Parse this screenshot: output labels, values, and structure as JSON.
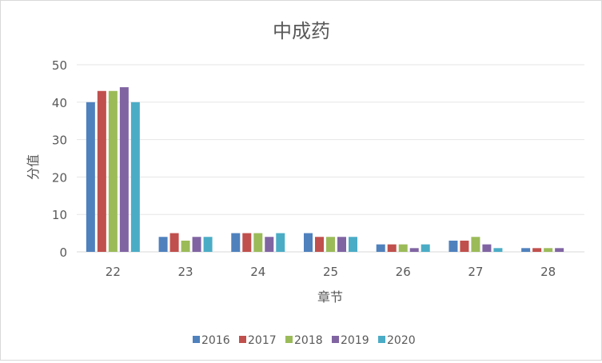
{
  "chart_data": {
    "type": "bar",
    "title": "中成药",
    "xlabel": "章节",
    "ylabel": "分值",
    "ylim": [
      0,
      50
    ],
    "yticks": [
      0,
      10,
      20,
      30,
      40,
      50
    ],
    "grid": true,
    "legend": "bottom",
    "categories": [
      "22",
      "23",
      "24",
      "25",
      "26",
      "27",
      "28"
    ],
    "series": [
      {
        "name": "2016",
        "color": "#4f81bd",
        "values": [
          40,
          4,
          5,
          5,
          2,
          3,
          1
        ]
      },
      {
        "name": "2017",
        "color": "#c0504d",
        "values": [
          43,
          5,
          5,
          4,
          2,
          3,
          1
        ]
      },
      {
        "name": "2018",
        "color": "#9bbb59",
        "values": [
          43,
          3,
          5,
          4,
          2,
          4,
          1
        ]
      },
      {
        "name": "2019",
        "color": "#8064a2",
        "values": [
          44,
          4,
          4,
          4,
          1,
          2,
          1
        ]
      },
      {
        "name": "2020",
        "color": "#4bacc6",
        "values": [
          40,
          4,
          5,
          4,
          2,
          1,
          0
        ]
      }
    ]
  }
}
